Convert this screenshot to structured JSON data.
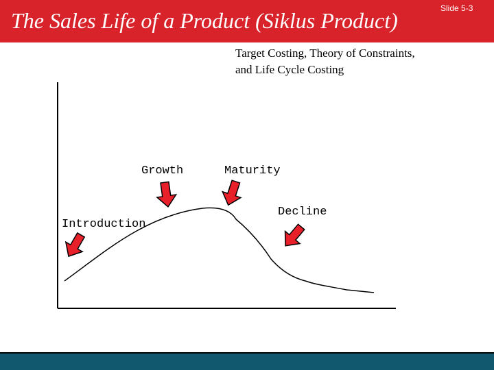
{
  "slide": {
    "title": "The Sales Life of a Product (Siklus Product)",
    "slide_number": "Slide 5-3",
    "subtitle_lines": [
      "Target Costing, Theory of Constraints,",
      "and Life Cycle Costing"
    ]
  },
  "diagram": {
    "stages": [
      {
        "id": "introduction",
        "label": "Introduction"
      },
      {
        "id": "growth",
        "label": "Growth"
      },
      {
        "id": "maturity",
        "label": "Maturity"
      },
      {
        "id": "decline",
        "label": "Decline"
      }
    ]
  },
  "colors": {
    "title_bar": "#d8232a",
    "arrow": "#e8202a",
    "footer": "#11586e"
  },
  "icons": {
    "stage_pointer": "red-arrow-icon"
  }
}
